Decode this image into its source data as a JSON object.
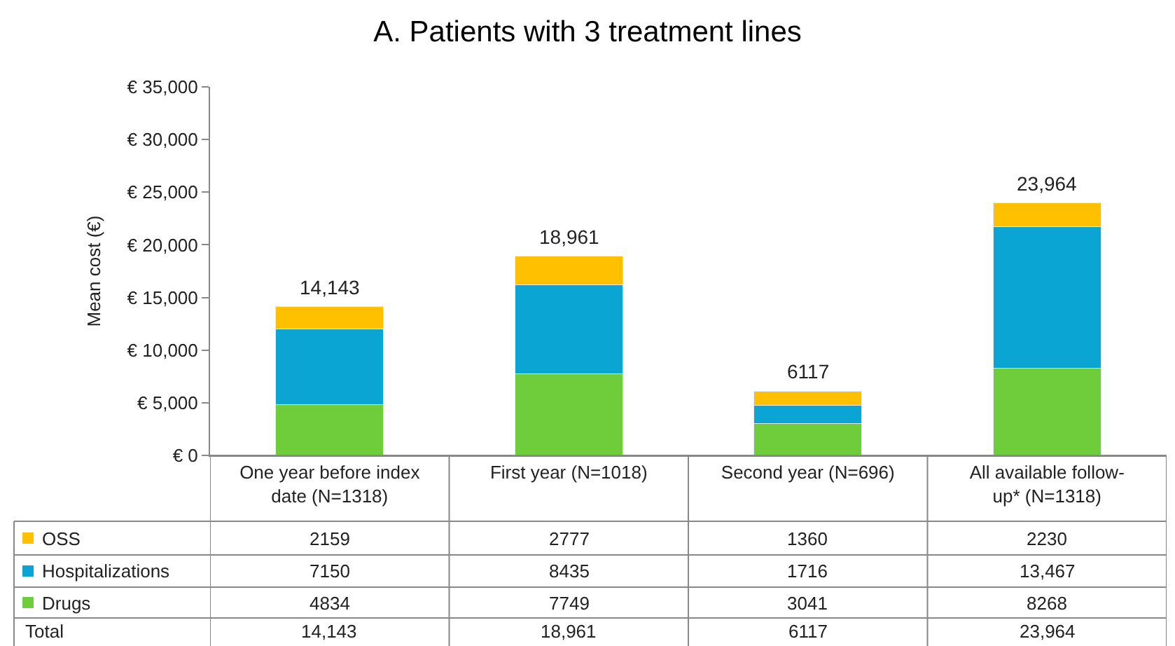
{
  "chart_data": {
    "type": "bar",
    "stacked": true,
    "title": "A. Patients with 3 treatment lines",
    "ylabel": "Mean cost (€)",
    "categories": [
      "One year before index\ndate (N=1318)",
      "First year (N=1018)",
      "Second year (N=696)",
      "All available follow-\nup* (N=1318)"
    ],
    "series": [
      {
        "name": "Drugs",
        "color": "#6fcd3c",
        "values": [
          4834,
          7749,
          3041,
          8268
        ],
        "value_labels": [
          "4834",
          "7749",
          "3041",
          "8268"
        ]
      },
      {
        "name": "Hospitalizations",
        "color": "#0aa5d2",
        "values": [
          7150,
          8435,
          1716,
          13467
        ],
        "value_labels": [
          "7150",
          "8435",
          "1716",
          "13,467"
        ]
      },
      {
        "name": "OSS",
        "color": "#ffc000",
        "values": [
          2159,
          2777,
          1360,
          2230
        ],
        "value_labels": [
          "2159",
          "2777",
          "1360",
          "2230"
        ]
      }
    ],
    "totals": [
      "14,143",
      "18,961",
      "6117",
      "23,964"
    ],
    "annotations": [
      "Total"
    ],
    "legend": "bottom left",
    "ylim": [
      0,
      35000
    ],
    "yticks": [
      {
        "value": 0,
        "label": "€ 0"
      },
      {
        "value": 5000,
        "label": "€ 5,000"
      },
      {
        "value": 10000,
        "label": "€ 10,000"
      },
      {
        "value": 15000,
        "label": "€ 15,000"
      },
      {
        "value": 20000,
        "label": "€ 20,000"
      },
      {
        "value": 25000,
        "label": "€ 25,000"
      },
      {
        "value": 30000,
        "label": "€ 30,000"
      },
      {
        "value": 35000,
        "label": "€ 35,000"
      }
    ],
    "grid": false
  }
}
